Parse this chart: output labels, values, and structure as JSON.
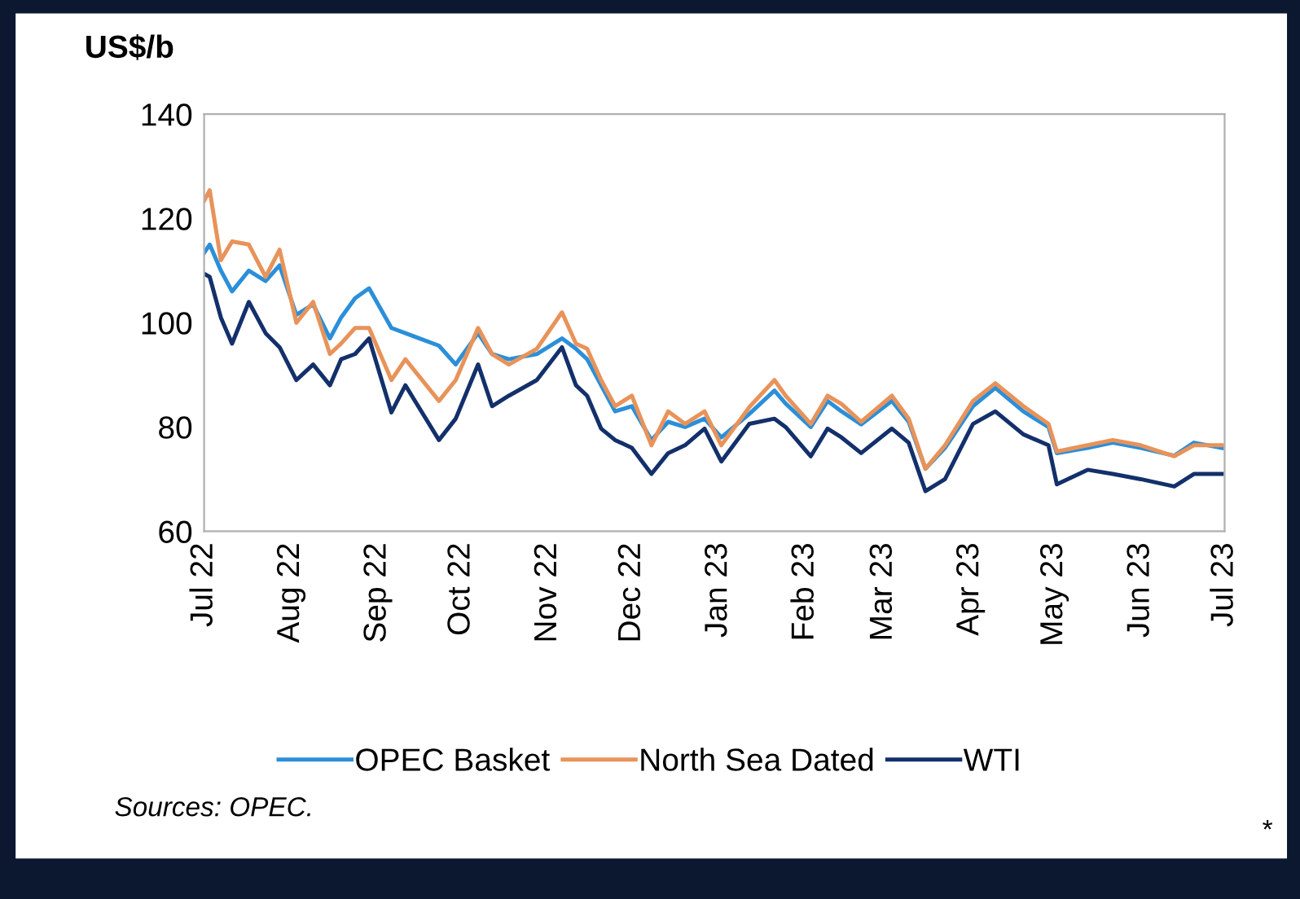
{
  "chart_data": {
    "type": "line",
    "ylabel": "US$/b",
    "x": [
      "2022-07-01",
      "2022-07-03",
      "2022-07-07",
      "2022-07-11",
      "2022-07-17",
      "2022-07-23",
      "2022-07-28",
      "2022-08-03",
      "2022-08-09",
      "2022-08-15",
      "2022-08-19",
      "2022-08-24",
      "2022-08-29",
      "2022-09-06",
      "2022-09-11",
      "2022-09-23",
      "2022-09-29",
      "2022-10-07",
      "2022-10-12",
      "2022-10-18",
      "2022-10-28",
      "2022-11-06",
      "2022-11-11",
      "2022-11-15",
      "2022-11-20",
      "2022-11-25",
      "2022-12-01",
      "2022-12-08",
      "2022-12-14",
      "2022-12-20",
      "2022-12-27",
      "2023-01-02",
      "2023-01-12",
      "2023-01-21",
      "2023-01-25",
      "2023-02-03",
      "2023-02-09",
      "2023-02-14",
      "2023-02-21",
      "2023-03-04",
      "2023-03-10",
      "2023-03-16",
      "2023-03-23",
      "2023-04-02",
      "2023-04-10",
      "2023-04-20",
      "2023-04-29",
      "2023-05-02",
      "2023-05-13",
      "2023-05-22",
      "2023-06-01",
      "2023-06-13",
      "2023-06-20",
      "2023-06-30"
    ],
    "series": [
      {
        "name": "OPEC Basket",
        "color": "#2b8fd9",
        "values": [
          113.4,
          115,
          110,
          106,
          110,
          108,
          111,
          101.5,
          103.5,
          97,
          101,
          104.7,
          106.6,
          99,
          98,
          95.6,
          92,
          98,
          94,
          93,
          94,
          97,
          95,
          93,
          88,
          83,
          84,
          77.5,
          81,
          80,
          81.6,
          78,
          82.5,
          87,
          84.5,
          80,
          85,
          83,
          80.5,
          85,
          81,
          72,
          76,
          84,
          87.5,
          83,
          80,
          75,
          76,
          77,
          76,
          74.5,
          77,
          76
        ]
      },
      {
        "name": "North Sea Dated",
        "color": "#e8935a",
        "values": [
          123.4,
          125.4,
          112,
          115.6,
          115,
          108.8,
          114,
          100,
          104,
          94,
          96,
          99,
          99,
          89,
          93,
          85,
          89,
          99,
          94,
          92,
          95,
          102,
          96,
          95,
          89,
          84,
          86,
          76.5,
          83,
          80.6,
          83,
          76.5,
          83.8,
          89,
          86,
          80.6,
          86,
          84.4,
          81,
          86,
          81.6,
          72,
          76.5,
          85,
          88.4,
          84,
          80.6,
          75.3,
          76.5,
          77.5,
          76.5,
          74.4,
          76.5,
          76.5
        ]
      },
      {
        "name": "WTI",
        "color": "#13306b",
        "values": [
          109.4,
          108.8,
          101,
          96,
          104,
          98,
          95.3,
          89,
          92,
          88,
          93,
          94,
          97,
          82.8,
          88,
          77.5,
          81.6,
          92,
          84,
          86,
          89,
          95.3,
          88,
          86,
          79.7,
          77.5,
          76,
          71,
          75,
          76.5,
          79.7,
          73.4,
          80.6,
          81.6,
          80,
          74.4,
          79.7,
          78,
          75,
          79.7,
          77,
          67.7,
          70,
          80.6,
          83,
          78.6,
          76.5,
          69,
          71.8,
          71,
          70,
          68.6,
          71,
          71
        ]
      }
    ],
    "xlim": [
      "2022-07-01",
      "2023-07-01"
    ],
    "xticks": [
      {
        "value": "2022-07-01",
        "label": "Jul 22"
      },
      {
        "value": "2022-08-01",
        "label": "Aug 22"
      },
      {
        "value": "2022-09-01",
        "label": "Sep 22"
      },
      {
        "value": "2022-10-01",
        "label": "Oct 22"
      },
      {
        "value": "2022-11-01",
        "label": "Nov 22"
      },
      {
        "value": "2022-12-01",
        "label": "Dec 22"
      },
      {
        "value": "2023-01-01",
        "label": "Jan 23"
      },
      {
        "value": "2023-02-01",
        "label": "Feb 23"
      },
      {
        "value": "2023-03-01",
        "label": "Mar 23"
      },
      {
        "value": "2023-04-01",
        "label": "Apr 23"
      },
      {
        "value": "2023-05-01",
        "label": "May 23"
      },
      {
        "value": "2023-06-01",
        "label": "Jun 23"
      },
      {
        "value": "2023-07-01",
        "label": "Jul 23"
      }
    ],
    "ylim": [
      60,
      140
    ],
    "yticks": [
      60,
      80,
      100,
      120,
      140
    ],
    "grid": false,
    "legend": "bottom",
    "line_style": "solid",
    "marker": "none",
    "annotations": [
      "Sources: OPEC.",
      "*"
    ]
  }
}
